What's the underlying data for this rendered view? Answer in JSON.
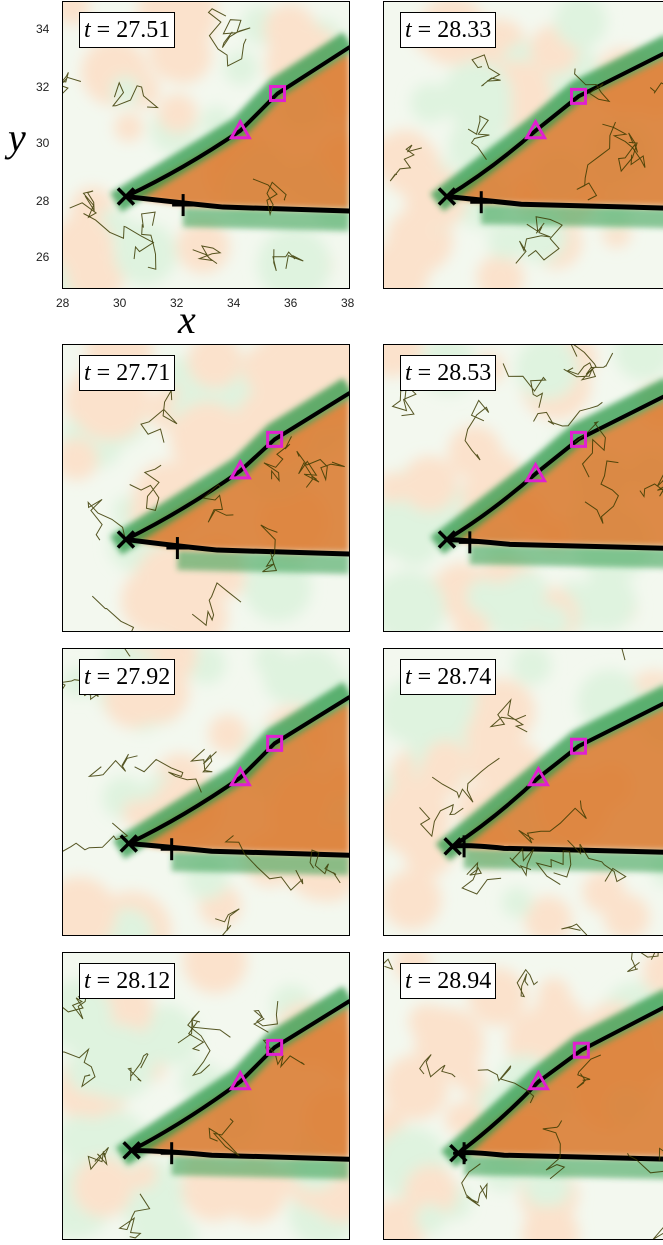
{
  "axes": {
    "x_label": "x",
    "y_label": "y",
    "x_ticks": [
      "28",
      "30",
      "32",
      "34",
      "36",
      "38"
    ],
    "y_ticks": [
      "34",
      "32",
      "30",
      "28",
      "26"
    ]
  },
  "panels": [
    {
      "t_var": "t",
      "eq": " = ",
      "t_value": "27.51"
    },
    {
      "t_var": "t",
      "eq": " = ",
      "t_value": "28.33"
    },
    {
      "t_var": "t",
      "eq": " = ",
      "t_value": "27.71"
    },
    {
      "t_var": "t",
      "eq": " = ",
      "t_value": "28.53"
    },
    {
      "t_var": "t",
      "eq": " = ",
      "t_value": "27.92"
    },
    {
      "t_var": "t",
      "eq": " = ",
      "t_value": "28.74"
    },
    {
      "t_var": "t",
      "eq": " = ",
      "t_value": "28.12"
    },
    {
      "t_var": "t",
      "eq": " = ",
      "t_value": "28.94"
    }
  ],
  "markers": [
    {
      "x_marker": [
        30.2,
        28.2
      ],
      "plus_marker": [
        32.2,
        27.9
      ],
      "triangle_marker": [
        34.2,
        30.5
      ],
      "square_marker": [
        35.5,
        31.8
      ]
    },
    {
      "x_marker": [
        30.2,
        28.2
      ],
      "plus_marker": [
        31.4,
        28.0
      ],
      "triangle_marker": [
        33.3,
        30.5
      ],
      "square_marker": [
        34.8,
        31.7
      ]
    },
    {
      "x_marker": [
        30.2,
        28.2
      ],
      "plus_marker": [
        32.0,
        27.9
      ],
      "triangle_marker": [
        34.2,
        30.6
      ],
      "square_marker": [
        35.4,
        31.7
      ]
    },
    {
      "x_marker": [
        30.2,
        28.2
      ],
      "plus_marker": [
        31.0,
        28.1
      ],
      "triangle_marker": [
        33.3,
        30.5
      ],
      "square_marker": [
        34.8,
        31.7
      ]
    },
    {
      "x_marker": [
        30.3,
        28.2
      ],
      "plus_marker": [
        31.8,
        28.0
      ],
      "triangle_marker": [
        34.2,
        30.5
      ],
      "square_marker": [
        35.4,
        31.7
      ]
    },
    {
      "x_marker": [
        30.4,
        28.1
      ],
      "plus_marker": [
        30.8,
        28.1
      ],
      "triangle_marker": [
        33.4,
        30.5
      ],
      "square_marker": [
        34.8,
        31.6
      ]
    },
    {
      "x_marker": [
        30.4,
        28.1
      ],
      "plus_marker": [
        31.8,
        28.0
      ],
      "triangle_marker": [
        34.2,
        30.5
      ],
      "square_marker": [
        35.4,
        31.7
      ]
    },
    {
      "x_marker": [
        30.6,
        28.0
      ],
      "plus_marker": [
        30.8,
        28.0
      ],
      "triangle_marker": [
        33.4,
        30.5
      ],
      "square_marker": [
        34.9,
        31.6
      ]
    }
  ],
  "colors": {
    "excited": "#d9772a",
    "excited_light": "#fbe2cc",
    "recovery": "#2f9a4a",
    "recovery_light": "#dff3df",
    "front": "#000000",
    "phase_singularity": "#e020d0",
    "contour": "#3a3a00"
  }
}
